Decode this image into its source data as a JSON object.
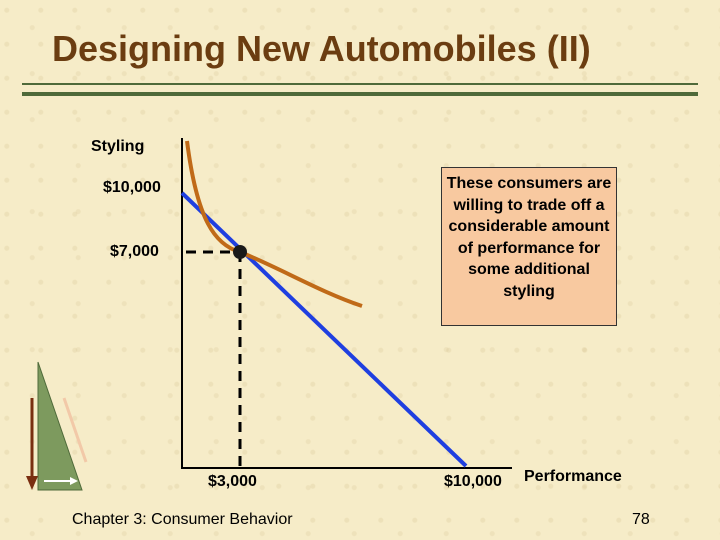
{
  "title": "Designing New Automobiles (II)",
  "diagram": {
    "y_axis_label": "Styling",
    "x_axis_label": "Performance",
    "y_ticks": [
      "$10,000",
      "$7,000"
    ],
    "x_ticks": [
      "$3,000",
      "$10,000"
    ],
    "annotation": "These consumers are willing to trade off a considerable amount of performance for some additional styling"
  },
  "footer": "Chapter 3: Consumer Behavior",
  "page_number": "78",
  "colors": {
    "title": "#6b3d11",
    "rule": "#4f6a3a",
    "budget_line": "#1f3fe0",
    "indifference_curve": "#c06a18",
    "annotation_fill": "#f8c9a0"
  }
}
